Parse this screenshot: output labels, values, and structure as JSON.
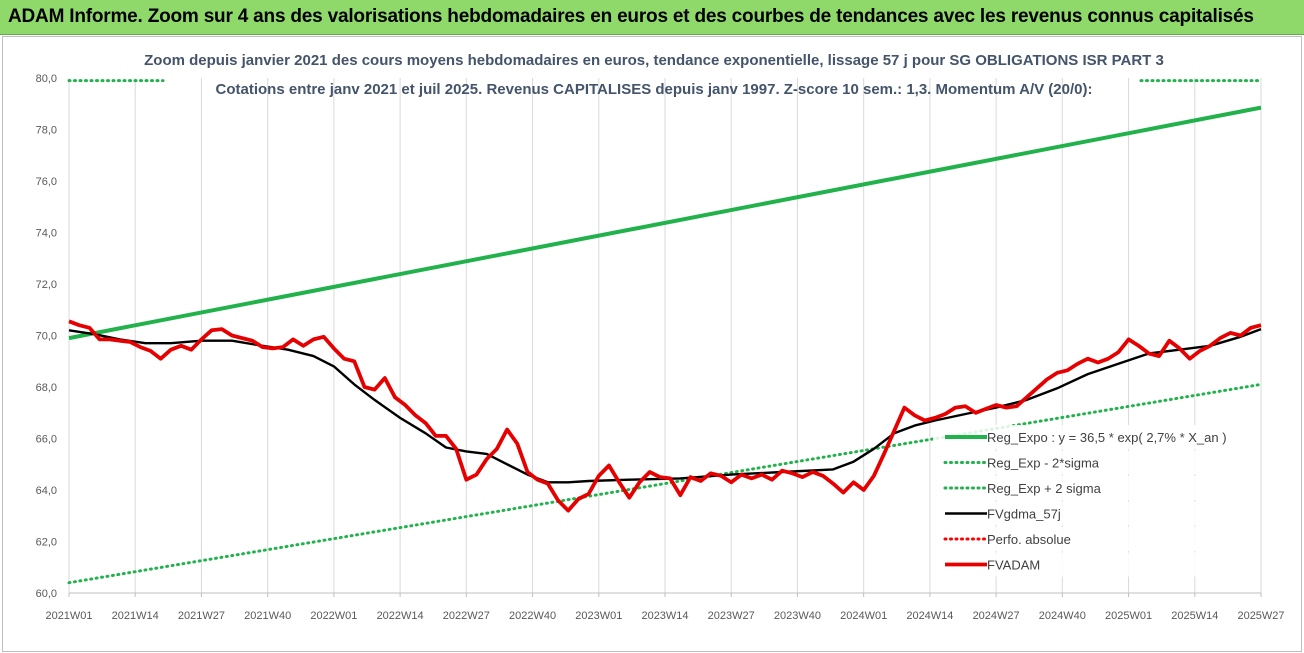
{
  "banner": {
    "title": "ADAM Informe. Zoom sur 4 ans des valorisations hebdomadaires en euros et des courbes de tendances avec les revenus connus capitalisés"
  },
  "chart_data": {
    "type": "line",
    "title": "Zoom depuis janvier 2021 des cours moyens hebdomadaires en euros, tendance exponentielle, lissage 57 j pour SG OBLIGATIONS ISR PART 3",
    "subtitle": "Cotations entre janv 2021 et juil 2025. Revenus CAPITALISES depuis janv 1997. Z-score 10 sem.: 1,3. Momentum A/V (20/0):",
    "xlabel": "",
    "ylabel": "",
    "ylim": [
      60,
      80
    ],
    "yticks": [
      "60,0",
      "62,0",
      "64,0",
      "66,0",
      "68,0",
      "70,0",
      "72,0",
      "74,0",
      "76,0",
      "78,0",
      "80,0"
    ],
    "x_tick_labels": [
      "2021W01",
      "2021W14",
      "2021W27",
      "2021W40",
      "2022W01",
      "2022W14",
      "2022W27",
      "2022W40",
      "2023W01",
      "2023W14",
      "2023W27",
      "2023W40",
      "2024W01",
      "2024W14",
      "2024W27",
      "2024W40",
      "2025W01",
      "2025W14",
      "2025W27"
    ],
    "x_range_weeks": [
      0,
      234
    ],
    "grid": "vertical",
    "legend_position": "right",
    "colors": {
      "green": "#22b24c",
      "black": "#000000",
      "red": "#e60000",
      "red_dotted": "#ff0000"
    },
    "series": [
      {
        "name": "Reg_Expo : y = 36,5 * exp( 2,7% *  X_an )",
        "style": "solid",
        "color": "#22b24c",
        "x_weeks": [
          0,
          234
        ],
        "y": [
          69.9,
          78.85
        ]
      },
      {
        "name": "Reg_Exp - 2*sigma",
        "style": "dotted",
        "color": "#22b24c",
        "x_weeks": [
          0,
          234
        ],
        "y": [
          60.4,
          68.1
        ]
      },
      {
        "name": "Reg_Exp + 2 sigma",
        "style": "dotted",
        "color": "#22b24c",
        "x_weeks": [
          0,
          234
        ],
        "y": [
          79.9,
          79.9
        ]
      },
      {
        "name": "FVgdma_57j",
        "style": "solid",
        "color": "#000000",
        "x_weeks": [
          0,
          5,
          10,
          15,
          20,
          26,
          32,
          38,
          43,
          48,
          52,
          56,
          60,
          65,
          70,
          74,
          78,
          82,
          86,
          90,
          94,
          98,
          102,
          110,
          120,
          130,
          140,
          150,
          154,
          158,
          162,
          166,
          170,
          176,
          182,
          188,
          194,
          200,
          206,
          212,
          218,
          224,
          230,
          234
        ],
        "y": [
          70.2,
          70.05,
          69.85,
          69.7,
          69.7,
          69.8,
          69.8,
          69.6,
          69.45,
          69.2,
          68.8,
          68.1,
          67.5,
          66.8,
          66.2,
          65.65,
          65.5,
          65.4,
          65.0,
          64.6,
          64.3,
          64.3,
          64.35,
          64.4,
          64.45,
          64.6,
          64.7,
          64.8,
          65.1,
          65.6,
          66.2,
          66.5,
          66.7,
          66.95,
          67.2,
          67.5,
          67.95,
          68.5,
          68.9,
          69.3,
          69.45,
          69.6,
          69.95,
          70.25
        ]
      },
      {
        "name": "Perfo. absolue",
        "style": "dotted",
        "color": "#ff0000",
        "x_weeks": [],
        "y": []
      },
      {
        "name": "FVADAM",
        "style": "solid-thick",
        "color": "#e60000",
        "x_weeks": [
          0,
          2,
          4,
          6,
          8,
          10,
          12,
          14,
          16,
          18,
          20,
          22,
          24,
          26,
          28,
          30,
          32,
          34,
          36,
          38,
          40,
          42,
          44,
          46,
          48,
          50,
          52,
          54,
          56,
          58,
          60,
          62,
          64,
          66,
          68,
          70,
          72,
          74,
          76,
          78,
          80,
          82,
          84,
          86,
          88,
          90,
          92,
          94,
          96,
          98,
          100,
          102,
          104,
          106,
          108,
          110,
          112,
          114,
          116,
          118,
          120,
          122,
          124,
          126,
          128,
          130,
          132,
          134,
          136,
          138,
          140,
          142,
          144,
          146,
          148,
          150,
          152,
          154,
          156,
          158,
          160,
          162,
          164,
          166,
          168,
          170,
          172,
          174,
          176,
          178,
          180,
          182,
          184,
          186,
          188,
          190,
          192,
          194,
          196,
          198,
          200,
          202,
          204,
          206,
          208,
          210,
          212,
          214,
          216,
          218,
          220,
          222,
          224,
          226,
          228,
          230,
          232,
          234
        ],
        "y": [
          70.55,
          70.4,
          70.3,
          69.85,
          69.85,
          69.8,
          69.75,
          69.55,
          69.4,
          69.1,
          69.45,
          69.6,
          69.45,
          69.85,
          70.2,
          70.25,
          70.0,
          69.9,
          69.8,
          69.55,
          69.5,
          69.55,
          69.85,
          69.6,
          69.85,
          69.95,
          69.5,
          69.1,
          69.0,
          68.0,
          67.9,
          68.35,
          67.6,
          67.3,
          66.9,
          66.6,
          66.1,
          66.1,
          65.6,
          64.4,
          64.6,
          65.2,
          65.6,
          66.35,
          65.8,
          64.7,
          64.4,
          64.25,
          63.6,
          63.2,
          63.65,
          63.85,
          64.55,
          64.95,
          64.3,
          63.7,
          64.3,
          64.7,
          64.5,
          64.45,
          63.8,
          64.5,
          64.35,
          64.65,
          64.55,
          64.3,
          64.6,
          64.45,
          64.6,
          64.4,
          64.75,
          64.65,
          64.5,
          64.7,
          64.55,
          64.25,
          63.9,
          64.3,
          64.0,
          64.55,
          65.4,
          66.3,
          67.2,
          66.9,
          66.7,
          66.8,
          66.95,
          67.2,
          67.25,
          67.0,
          67.15,
          67.3,
          67.2,
          67.25,
          67.6,
          67.95,
          68.3,
          68.55,
          68.65,
          68.9,
          69.1,
          68.95,
          69.1,
          69.35,
          69.85,
          69.6,
          69.3,
          69.2,
          69.8,
          69.5,
          69.1,
          69.4,
          69.6,
          69.9,
          70.1,
          70.0,
          70.3,
          70.4
        ]
      }
    ]
  }
}
